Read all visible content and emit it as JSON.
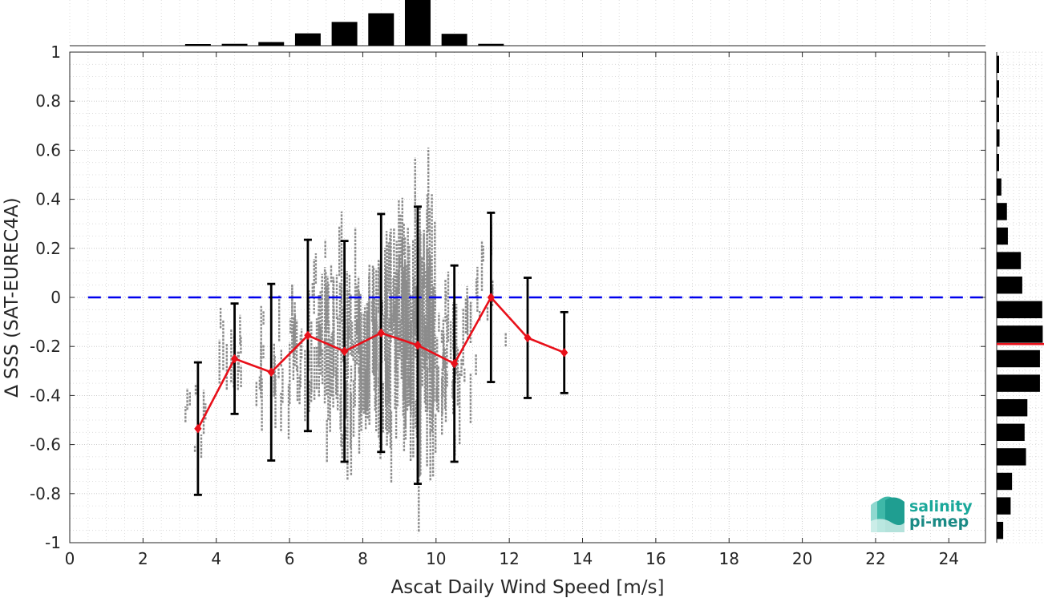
{
  "chart_data": {
    "type": "scatter",
    "xlabel": "Ascat Daily Wind Speed [m/s]",
    "ylabel": "∆ SSS (SAT-EUREC4A)",
    "xlim": [
      0,
      25
    ],
    "ylim": [
      -1,
      1
    ],
    "xticks": [
      0,
      2,
      4,
      6,
      8,
      10,
      12,
      14,
      16,
      18,
      20,
      22,
      24
    ],
    "yticks": [
      -1,
      -0.8,
      -0.6,
      -0.4,
      -0.2,
      0,
      0.2,
      0.4,
      0.6,
      0.8,
      1
    ],
    "xtick_labels": [
      "0",
      "2",
      "4",
      "6",
      "8",
      "10",
      "12",
      "14",
      "16",
      "18",
      "20",
      "22",
      "24"
    ],
    "ytick_labels": [
      "-1",
      "-0.8",
      "-0.6",
      "-0.4",
      "-0.2",
      "0",
      "0.2",
      "0.4",
      "0.6",
      "0.8",
      "1"
    ],
    "grid": true,
    "reference_line": {
      "y": 0,
      "style": "dashed",
      "color": "#0000ee"
    },
    "bin_stats": {
      "color": "#e8101a",
      "x": [
        3.5,
        4.5,
        5.5,
        6.5,
        7.5,
        8.5,
        9.5,
        10.5,
        11.5,
        12.5,
        13.5
      ],
      "mean": [
        -0.535,
        -0.25,
        -0.305,
        -0.155,
        -0.22,
        -0.145,
        -0.195,
        -0.27,
        0.0,
        -0.165,
        -0.225
      ],
      "std": [
        0.27,
        0.225,
        0.36,
        0.39,
        0.45,
        0.485,
        0.565,
        0.4,
        0.345,
        0.245,
        0.165
      ]
    },
    "scatter_color": "#8c8c8c",
    "top_histogram": {
      "bin_centers": [
        3.5,
        4.5,
        5.5,
        6.5,
        7.5,
        8.5,
        9.5,
        10.5,
        11.5
      ],
      "relative_counts": [
        0.0,
        0.04,
        0.08,
        0.27,
        0.52,
        0.71,
        1.0,
        0.26,
        0.04
      ]
    },
    "right_histogram": {
      "bin_centers": [
        0.95,
        0.85,
        0.75,
        0.65,
        0.55,
        0.45,
        0.35,
        0.25,
        0.15,
        0.05,
        -0.05,
        -0.15,
        -0.25,
        -0.35,
        -0.45,
        -0.55,
        -0.65,
        -0.75,
        -0.85,
        -0.95
      ],
      "relative_counts": [
        0.04,
        0.03,
        0.03,
        0.06,
        0.05,
        0.1,
        0.22,
        0.24,
        0.52,
        0.55,
        0.98,
        0.99,
        0.93,
        0.93,
        0.66,
        0.6,
        0.63,
        0.33,
        0.3,
        0.14
      ],
      "mean_line": {
        "y": -0.19,
        "color": "#e8101a"
      }
    }
  },
  "logo": {
    "line1": "salinity",
    "line2": "pi-mep",
    "color": "#1aa89a"
  }
}
